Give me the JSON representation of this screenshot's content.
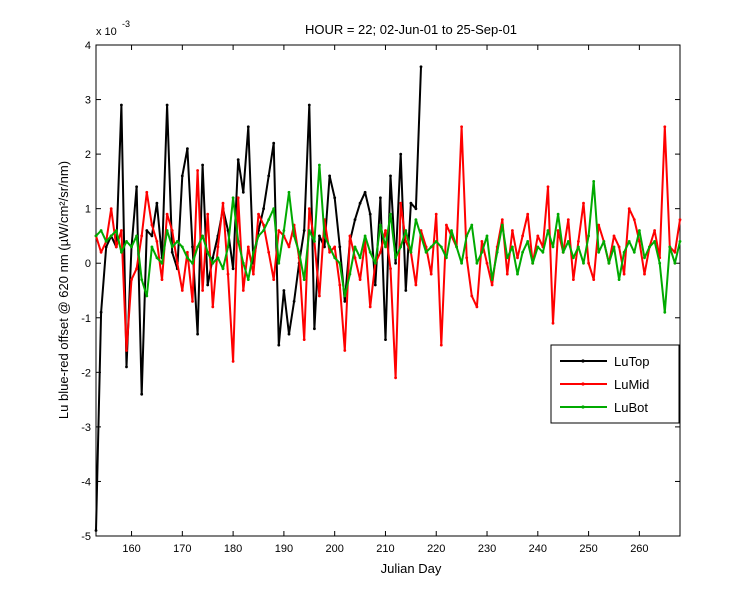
{
  "chart_data": {
    "type": "line",
    "title": "HOUR = 22; 02-Jun-01 to 25-Sep-01",
    "xlabel": "Julian Day",
    "ylabel": "Lu blue-red offset @ 620 nm (µW/cm²/sr/nm)",
    "y_multiplier_base": "x 10",
    "y_multiplier_exponent": "-3",
    "xlim": [
      153,
      268
    ],
    "ylim": [
      -5,
      4
    ],
    "xticks": [
      160,
      170,
      180,
      190,
      200,
      210,
      220,
      230,
      240,
      250,
      260
    ],
    "yticks": [
      -5,
      -4,
      -3,
      -2,
      -1,
      0,
      1,
      2,
      3,
      4
    ],
    "grid": false,
    "legend_position": "right-middle",
    "series": [
      {
        "name": "LuTop",
        "color": "#000000",
        "x": [
          153,
          154,
          155,
          156,
          157,
          158,
          159,
          160,
          161,
          162,
          163,
          164,
          165,
          166,
          167,
          168,
          169,
          170,
          171,
          172,
          173,
          174,
          175,
          176,
          177,
          178,
          179,
          180,
          181,
          182,
          183,
          184,
          185,
          186,
          187,
          188,
          189,
          190,
          191,
          192,
          193,
          194,
          195,
          196,
          197,
          198,
          199,
          200,
          201,
          202,
          203,
          204,
          205,
          206,
          207,
          208,
          209,
          210,
          211,
          212,
          213,
          214,
          215,
          216,
          217
        ],
        "values": [
          -4.9,
          -0.9,
          0.3,
          0.5,
          0.3,
          2.9,
          -1.9,
          0.3,
          1.4,
          -2.4,
          0.6,
          0.5,
          1.1,
          0.1,
          2.9,
          0.2,
          -0.1,
          1.6,
          2.1,
          0.3,
          -1.3,
          1.8,
          -0.4,
          0.1,
          0.5,
          1.0,
          0.6,
          -0.1,
          1.9,
          1.3,
          2.5,
          0.0,
          0.6,
          1.0,
          1.6,
          2.2,
          -1.5,
          -0.5,
          -1.3,
          -0.7,
          0.0,
          0.6,
          2.9,
          -1.2,
          0.5,
          0.3,
          1.6,
          1.2,
          0.3,
          -0.7,
          0.4,
          0.8,
          1.1,
          1.3,
          0.9,
          -0.4,
          1.2,
          -1.4,
          1.6,
          0.0,
          2.0,
          -0.5,
          1.1,
          1.0,
          3.6
        ]
      },
      {
        "name": "LuMid",
        "color": "#ff0000",
        "x": [
          153,
          154,
          155,
          156,
          157,
          158,
          159,
          160,
          161,
          162,
          163,
          164,
          165,
          166,
          167,
          168,
          169,
          170,
          171,
          172,
          173,
          174,
          175,
          176,
          177,
          178,
          179,
          180,
          181,
          182,
          183,
          184,
          185,
          186,
          187,
          188,
          189,
          190,
          191,
          192,
          193,
          194,
          195,
          196,
          197,
          198,
          199,
          200,
          201,
          202,
          203,
          204,
          205,
          206,
          207,
          208,
          209,
          210,
          211,
          212,
          213,
          214,
          215,
          216,
          217,
          218,
          219,
          220,
          221,
          222,
          223,
          224,
          225,
          226,
          227,
          228,
          229,
          230,
          231,
          232,
          233,
          234,
          235,
          236,
          237,
          238,
          239,
          240,
          241,
          242,
          243,
          244,
          245,
          246,
          247,
          248,
          249,
          250,
          251,
          252,
          253,
          254,
          255,
          256,
          257,
          258,
          259,
          260,
          261,
          262,
          263,
          264,
          265,
          266,
          267,
          268
        ],
        "values": [
          0.5,
          0.2,
          0.4,
          1.0,
          0.3,
          0.6,
          -1.6,
          -0.3,
          -0.1,
          0.5,
          1.3,
          0.7,
          0.4,
          -0.3,
          0.9,
          0.6,
          0.0,
          -0.5,
          0.2,
          -0.7,
          1.7,
          -0.5,
          0.9,
          -0.8,
          0.3,
          1.1,
          -0.2,
          -1.8,
          1.2,
          -0.5,
          0.3,
          -0.2,
          0.9,
          0.7,
          0.2,
          -0.3,
          0.6,
          0.5,
          0.3,
          0.7,
          0.1,
          -1.4,
          1.0,
          0.4,
          -0.6,
          0.8,
          0.2,
          0.3,
          -0.4,
          -1.6,
          0.5,
          0.1,
          -0.3,
          0.4,
          -0.8,
          0.0,
          0.2,
          0.6,
          -0.1,
          -2.1,
          1.1,
          0.4,
          0.2,
          -0.4,
          0.6,
          0.3,
          -0.2,
          0.9,
          -1.5,
          0.7,
          0.5,
          0.3,
          2.5,
          0.1,
          -0.6,
          -0.8,
          0.4,
          0.0,
          -0.4,
          0.3,
          0.8,
          -0.2,
          0.6,
          0.1,
          0.5,
          0.9,
          0.0,
          0.5,
          0.3,
          1.4,
          -1.1,
          0.6,
          0.2,
          0.8,
          -0.3,
          0.4,
          1.1,
          0.0,
          -0.3,
          0.7,
          0.4,
          0.0,
          0.5,
          0.3,
          -0.2,
          1.0,
          0.8,
          0.4,
          -0.2,
          0.3,
          0.6,
          0.1,
          2.5,
          0.3,
          0.2,
          0.8
        ]
      },
      {
        "name": "LuBot",
        "color": "#00aa00",
        "x": [
          153,
          154,
          155,
          156,
          157,
          158,
          159,
          160,
          161,
          162,
          163,
          164,
          165,
          166,
          167,
          168,
          169,
          170,
          171,
          172,
          173,
          174,
          175,
          176,
          177,
          178,
          179,
          180,
          181,
          182,
          183,
          184,
          185,
          186,
          187,
          188,
          189,
          190,
          191,
          192,
          193,
          194,
          195,
          196,
          197,
          198,
          199,
          200,
          201,
          202,
          203,
          204,
          205,
          206,
          207,
          208,
          209,
          210,
          211,
          212,
          213,
          214,
          215,
          216,
          217,
          218,
          219,
          220,
          221,
          222,
          223,
          224,
          225,
          226,
          227,
          228,
          229,
          230,
          231,
          232,
          233,
          234,
          235,
          236,
          237,
          238,
          239,
          240,
          241,
          242,
          243,
          244,
          245,
          246,
          247,
          248,
          249,
          250,
          251,
          252,
          253,
          254,
          255,
          256,
          257,
          258,
          259,
          260,
          261,
          262,
          263,
          264,
          265,
          266,
          267,
          268
        ],
        "values": [
          0.5,
          0.6,
          0.4,
          0.5,
          0.6,
          0.2,
          0.4,
          0.3,
          0.5,
          -0.3,
          -0.6,
          0.3,
          0.1,
          0.0,
          0.6,
          0.3,
          0.4,
          0.3,
          0.1,
          0.0,
          0.3,
          0.5,
          0.2,
          0.0,
          0.1,
          -0.1,
          0.3,
          1.2,
          0.4,
          0.0,
          -0.3,
          0.2,
          0.5,
          0.6,
          0.8,
          1.0,
          0.0,
          0.6,
          1.3,
          0.5,
          0.2,
          -0.3,
          0.6,
          0.4,
          1.8,
          0.5,
          0.3,
          0.1,
          0.0,
          -0.6,
          -0.2,
          0.3,
          0.1,
          0.5,
          0.2,
          0.0,
          0.7,
          0.3,
          0.9,
          0.1,
          0.3,
          0.6,
          0.2,
          0.8,
          0.5,
          0.2,
          0.3,
          0.4,
          0.3,
          0.1,
          0.6,
          0.3,
          0.0,
          0.5,
          0.7,
          0.0,
          0.2,
          0.5,
          -0.3,
          0.2,
          0.7,
          0.1,
          0.3,
          -0.2,
          0.2,
          0.4,
          0.0,
          0.3,
          0.2,
          0.6,
          0.3,
          0.9,
          0.2,
          0.4,
          0.1,
          0.3,
          0.0,
          0.5,
          1.5,
          0.2,
          0.4,
          0.0,
          0.3,
          -0.3,
          0.2,
          0.4,
          0.2,
          0.6,
          0.1,
          0.3,
          0.4,
          0.0,
          -0.9,
          0.3,
          0.0,
          0.4
        ]
      }
    ]
  }
}
